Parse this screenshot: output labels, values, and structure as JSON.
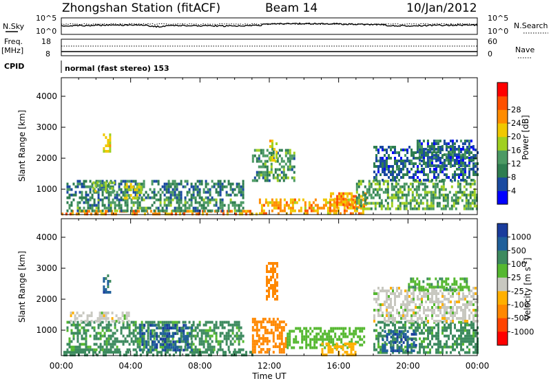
{
  "header": {
    "station": "Zhongshan Station (fitACF)",
    "beam": "Beam 14",
    "date": "10/Jan/2012"
  },
  "aux_panels": {
    "nsky_label": "N.Sky",
    "nsky_ticks": [
      "10^5",
      "10^0"
    ],
    "nsearch_label": "N.Search",
    "nsearch_ticks": [
      "10^5",
      "10^0"
    ],
    "freq_label": "Freq.",
    "freq_unit": "[MHz]",
    "freq_ticks": [
      "18",
      "8"
    ],
    "nave_label": "Nave",
    "nave_ticks": [
      "60",
      "0"
    ],
    "cpid_label": "CPID",
    "cpid_text": "normal (fast stereo) 153"
  },
  "colors": {
    "power": [
      "#0000ff",
      "#1a4aa0",
      "#2e7d50",
      "#4c9a64",
      "#a0d020",
      "#f0c800",
      "#ff8c00",
      "#ff5000",
      "#ff0000"
    ],
    "velocity": [
      "#1a3c9c",
      "#1f5f9a",
      "#3d8a5f",
      "#55b830",
      "#c8c8c0",
      "#ffb000",
      "#ff8800",
      "#ff4400",
      "#ff0000"
    ]
  },
  "chart_data": [
    {
      "type": "heatmap",
      "title": "",
      "xlabel": "",
      "ylabel": "Slant Range [km]",
      "x_ticks": [
        "00:00",
        "04:00",
        "08:00",
        "12:00",
        "16:00",
        "20:00",
        "00:00"
      ],
      "xlim_hours": [
        0,
        24
      ],
      "ylim": [
        180,
        4600
      ],
      "y_ticks": [
        "1000",
        "2000",
        "3000",
        "4000"
      ],
      "colorbar_label": "Power [dB]",
      "colorbar_ticks": [
        "4",
        "8",
        "12",
        "16",
        "20",
        "24",
        "28"
      ],
      "echo_regions": [
        {
          "t": [
            0.0,
            11.4
          ],
          "r": [
            200,
            330
          ],
          "value": 26
        },
        {
          "t": [
            0.3,
            10.5
          ],
          "r": [
            330,
            700
          ],
          "value": 12
        },
        {
          "t": [
            0.3,
            10.5
          ],
          "r": [
            700,
            1300
          ],
          "value": 10
        },
        {
          "t": [
            1.8,
            3.0
          ],
          "r": [
            900,
            1250
          ],
          "value": 16
        },
        {
          "t": [
            2.4,
            2.8
          ],
          "r": [
            2200,
            2800
          ],
          "value": 20
        },
        {
          "t": [
            3.6,
            4.6
          ],
          "r": [
            750,
            1200
          ],
          "value": 18
        },
        {
          "t": [
            11.0,
            13.5
          ],
          "r": [
            1300,
            2300
          ],
          "value": 12
        },
        {
          "t": [
            12.0,
            12.4
          ],
          "r": [
            1900,
            2600
          ],
          "value": 20
        },
        {
          "t": [
            11.4,
            17.5
          ],
          "r": [
            200,
            700
          ],
          "value": 24
        },
        {
          "t": [
            15.5,
            17.6
          ],
          "r": [
            400,
            900
          ],
          "value": 26
        },
        {
          "t": [
            17.0,
            24.0
          ],
          "r": [
            400,
            1300
          ],
          "value": 14
        },
        {
          "t": [
            18.0,
            24.0
          ],
          "r": [
            1300,
            2400
          ],
          "value": 8
        },
        {
          "t": [
            20.5,
            23.8
          ],
          "r": [
            1800,
            2600
          ],
          "value": 8
        }
      ]
    },
    {
      "type": "heatmap",
      "title": "",
      "xlabel": "Time UT",
      "ylabel": "Slant Range [km]",
      "x_ticks": [
        "00:00",
        "04:00",
        "08:00",
        "12:00",
        "16:00",
        "20:00",
        "00:00"
      ],
      "xlim_hours": [
        0,
        24
      ],
      "ylim": [
        180,
        4600
      ],
      "y_ticks": [
        "1000",
        "2000",
        "3000",
        "4000"
      ],
      "colorbar_label": "Velocity [m s^-1]",
      "colorbar_ticks": [
        "1000",
        "500",
        "100",
        "25",
        "-25",
        "-100",
        "-500",
        "-1000"
      ],
      "echo_regions": [
        {
          "t": [
            0.0,
            11.0
          ],
          "r": [
            200,
            330
          ],
          "value": 200
        },
        {
          "t": [
            0.3,
            10.5
          ],
          "r": [
            330,
            1300
          ],
          "value": 150
        },
        {
          "t": [
            4.5,
            7.5
          ],
          "r": [
            400,
            1200
          ],
          "value": 800
        },
        {
          "t": [
            2.4,
            2.8
          ],
          "r": [
            2200,
            2800
          ],
          "value": 800
        },
        {
          "t": [
            0.5,
            4.0
          ],
          "r": [
            1300,
            1600
          ],
          "value": 0
        },
        {
          "t": [
            11.0,
            13.0
          ],
          "r": [
            300,
            1400
          ],
          "value": -200
        },
        {
          "t": [
            11.8,
            12.4
          ],
          "r": [
            2000,
            3200
          ],
          "value": -200
        },
        {
          "t": [
            13.0,
            17.5
          ],
          "r": [
            400,
            1100
          ],
          "value": 60
        },
        {
          "t": [
            15.0,
            17.0
          ],
          "r": [
            200,
            600
          ],
          "value": -60
        },
        {
          "t": [
            18.0,
            24.0
          ],
          "r": [
            300,
            1300
          ],
          "value": 150
        },
        {
          "t": [
            18.5,
            20.5
          ],
          "r": [
            300,
            1000
          ],
          "value": 800
        },
        {
          "t": [
            18.0,
            24.0
          ],
          "r": [
            1300,
            2400
          ],
          "value": 0
        },
        {
          "t": [
            20.0,
            23.5
          ],
          "r": [
            2300,
            2700
          ],
          "value": 80
        }
      ]
    }
  ]
}
